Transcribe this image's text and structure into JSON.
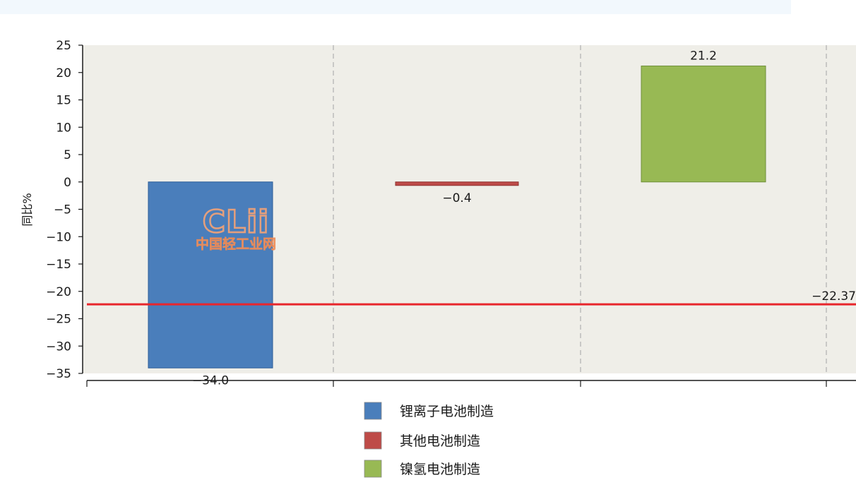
{
  "chart_data": {
    "type": "bar",
    "ylabel": "同比%",
    "ylim": [
      -35,
      25
    ],
    "yticks": [
      25,
      20,
      15,
      10,
      5,
      0,
      -5,
      -10,
      -15,
      -20,
      -25,
      -30,
      -35
    ],
    "grid": {
      "vertical_dashed": true,
      "horizontal": false
    },
    "legend_position": "bottom-center",
    "series": [
      {
        "name": "锂离子电池制造",
        "value": -34.0,
        "label": "−34.0",
        "color": "#4a7ebb"
      },
      {
        "name": "其他电池制造",
        "value": -0.4,
        "label": "−0.4",
        "color": "#be4b48"
      },
      {
        "name": "镍氢电池制造",
        "value": 21.2,
        "label": "21.2",
        "color": "#98b954"
      }
    ],
    "reference_line": {
      "value": -22.37,
      "label": "−22.37",
      "color": "#e8262c"
    },
    "colors": {
      "plot_background": "#efeee8",
      "page_band": "#f2f8fd"
    }
  },
  "watermark": {
    "logo_text": "CLii",
    "logo_subtext": "中国轻工业网"
  }
}
